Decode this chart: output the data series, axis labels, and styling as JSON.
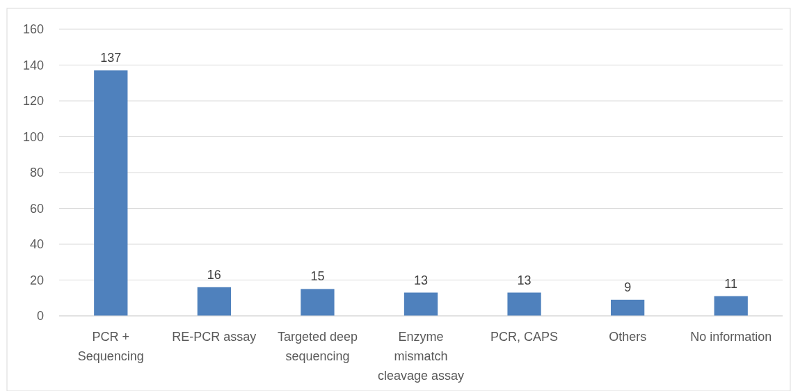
{
  "chart_data": {
    "type": "bar",
    "categories": [
      "PCR + Sequencing",
      "RE-PCR assay",
      "Targeted deep sequencing",
      "Enzyme mismatch cleavage assay",
      "PCR, CAPS",
      "Others",
      "No information"
    ],
    "values": [
      137,
      16,
      15,
      13,
      13,
      9,
      11
    ],
    "color": "#4f81bd",
    "ylim": [
      0,
      160
    ],
    "yticks": [
      0,
      20,
      40,
      60,
      80,
      100,
      120,
      140,
      160
    ],
    "grid": "y",
    "data_labels": true
  }
}
